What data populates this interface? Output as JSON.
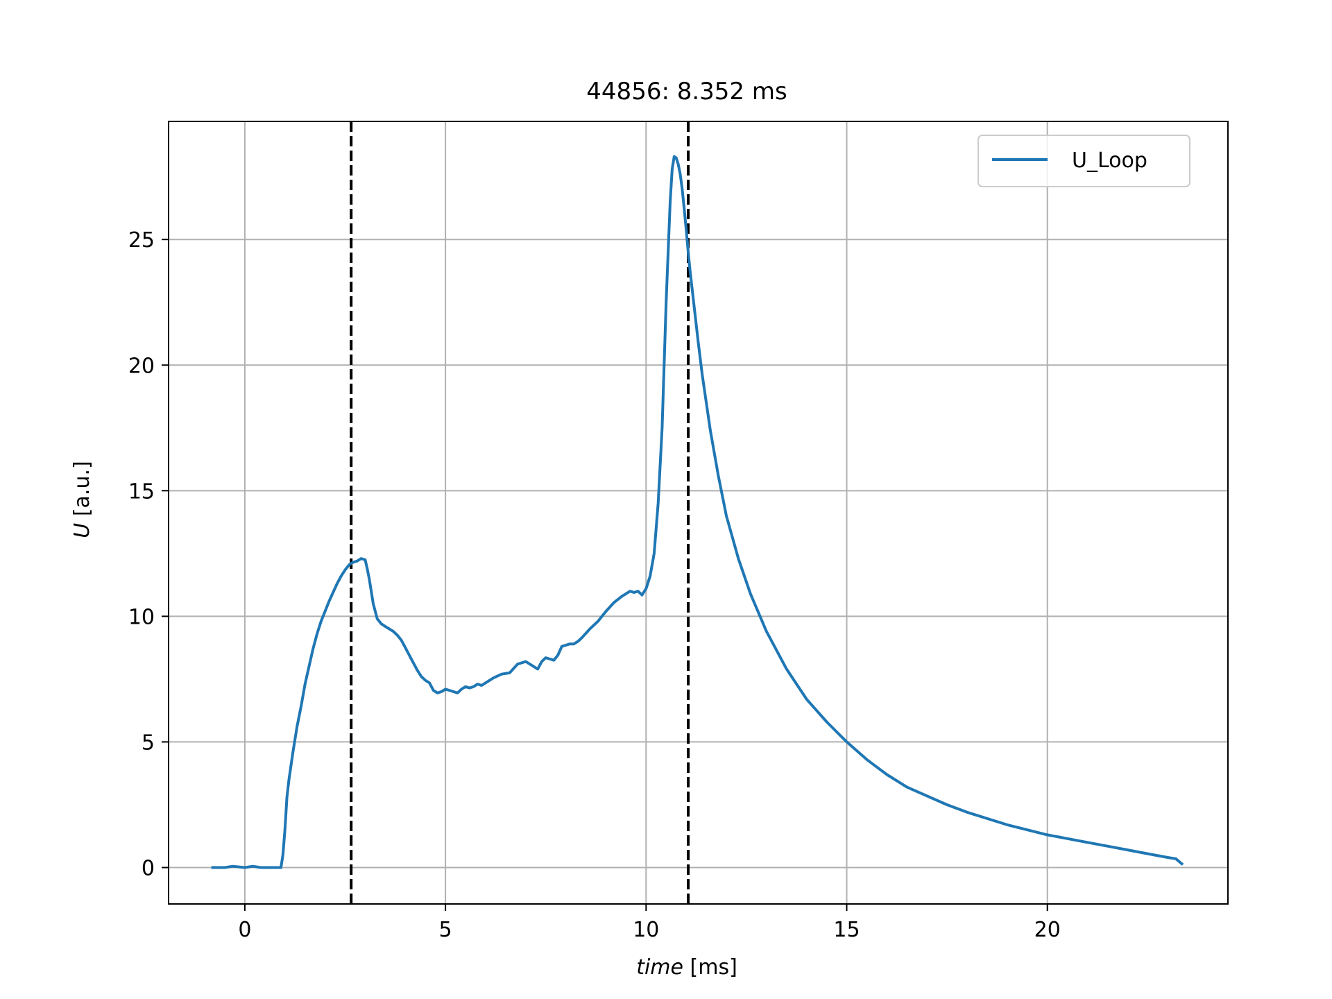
{
  "chart_data": {
    "type": "line",
    "title": "44856: 8.352 ms",
    "xlabel": {
      "italic": "time",
      "unit": " [ms]"
    },
    "ylabel": {
      "italic": "U",
      "unit": " [a.u.]"
    },
    "xlim": [
      -1.9,
      24.5
    ],
    "ylim": [
      -1.45,
      29.7
    ],
    "xticks": [
      0,
      5,
      10,
      15,
      20
    ],
    "yticks": [
      0,
      5,
      10,
      15,
      20,
      25
    ],
    "grid": true,
    "legend": {
      "position": "top-right",
      "entries": [
        "U_Loop"
      ]
    },
    "vlines": [
      {
        "x": 2.65,
        "style": "dashed",
        "color": "#000000"
      },
      {
        "x": 11.05,
        "style": "dashed",
        "color": "#000000"
      }
    ],
    "series": [
      {
        "name": "U_Loop",
        "color": "#1f77b4",
        "x": [
          -0.8,
          -0.5,
          -0.3,
          0.0,
          0.2,
          0.4,
          0.6,
          0.8,
          0.9,
          0.95,
          1.0,
          1.05,
          1.1,
          1.2,
          1.3,
          1.4,
          1.5,
          1.6,
          1.7,
          1.8,
          1.9,
          2.0,
          2.1,
          2.2,
          2.3,
          2.4,
          2.5,
          2.6,
          2.7,
          2.8,
          2.9,
          3.0,
          3.05,
          3.1,
          3.15,
          3.2,
          3.3,
          3.4,
          3.5,
          3.6,
          3.7,
          3.8,
          3.9,
          4.0,
          4.1,
          4.2,
          4.3,
          4.4,
          4.5,
          4.6,
          4.7,
          4.8,
          4.9,
          5.0,
          5.2,
          5.3,
          5.4,
          5.5,
          5.6,
          5.7,
          5.8,
          5.9,
          6.0,
          6.2,
          6.4,
          6.6,
          6.8,
          7.0,
          7.1,
          7.2,
          7.3,
          7.4,
          7.5,
          7.6,
          7.7,
          7.8,
          7.9,
          8.0,
          8.1,
          8.2,
          8.3,
          8.4,
          8.6,
          8.8,
          9.0,
          9.2,
          9.4,
          9.6,
          9.7,
          9.8,
          9.9,
          10.0,
          10.1,
          10.2,
          10.3,
          10.4,
          10.5,
          10.6,
          10.65,
          10.7,
          10.75,
          10.8,
          10.85,
          10.9,
          10.95,
          11.0,
          11.05,
          11.1,
          11.2,
          11.3,
          11.4,
          11.6,
          11.8,
          12.0,
          12.3,
          12.6,
          13.0,
          13.5,
          14.0,
          14.5,
          15.0,
          15.5,
          16.0,
          16.5,
          17.0,
          17.5,
          18.0,
          18.5,
          19.0,
          19.5,
          20.0,
          20.5,
          21.0,
          21.5,
          22.0,
          22.5,
          23.0,
          23.2,
          23.35
        ],
        "y": [
          0.0,
          0.0,
          0.05,
          0.0,
          0.05,
          0.0,
          0.0,
          0.0,
          0.0,
          0.5,
          1.5,
          2.8,
          3.5,
          4.6,
          5.6,
          6.4,
          7.3,
          8.0,
          8.7,
          9.3,
          9.8,
          10.2,
          10.6,
          10.95,
          11.3,
          11.6,
          11.85,
          12.05,
          12.15,
          12.2,
          12.3,
          12.25,
          11.9,
          11.5,
          11.0,
          10.5,
          9.9,
          9.7,
          9.6,
          9.5,
          9.4,
          9.25,
          9.05,
          8.75,
          8.45,
          8.15,
          7.85,
          7.6,
          7.45,
          7.35,
          7.05,
          6.95,
          7.0,
          7.1,
          7.0,
          6.95,
          7.1,
          7.2,
          7.15,
          7.2,
          7.3,
          7.25,
          7.35,
          7.55,
          7.7,
          7.75,
          8.1,
          8.2,
          8.1,
          8.0,
          7.9,
          8.2,
          8.35,
          8.3,
          8.25,
          8.45,
          8.8,
          8.85,
          8.9,
          8.9,
          9.0,
          9.15,
          9.5,
          9.8,
          10.2,
          10.55,
          10.8,
          11.0,
          10.95,
          11.0,
          10.85,
          11.1,
          11.6,
          12.5,
          14.5,
          17.5,
          22.5,
          26.5,
          27.8,
          28.3,
          28.25,
          28.0,
          27.6,
          27.0,
          26.2,
          25.4,
          24.5,
          23.7,
          22.3,
          20.9,
          19.6,
          17.4,
          15.6,
          14.0,
          12.3,
          10.9,
          9.4,
          7.9,
          6.7,
          5.8,
          5.0,
          4.3,
          3.7,
          3.2,
          2.85,
          2.5,
          2.2,
          1.95,
          1.7,
          1.5,
          1.3,
          1.15,
          1.0,
          0.85,
          0.7,
          0.55,
          0.4,
          0.35,
          0.15
        ]
      }
    ]
  }
}
